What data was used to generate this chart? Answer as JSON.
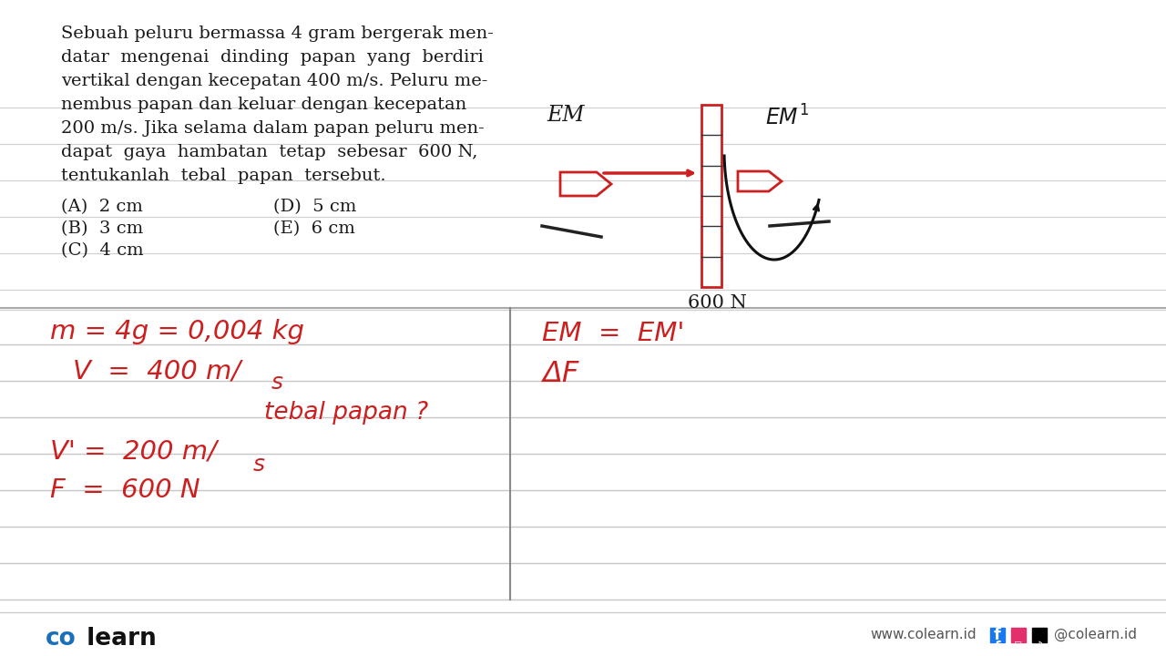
{
  "bg_color": "#ffffff",
  "line_color": "#cccccc",
  "red_color": "#cc2020",
  "black_color": "#1a1a1a",
  "problem_lines": [
    "Sebuah peluru bermassa 4 gram bergerak men-",
    "datar  mengenai  dinding  papan  yang  berdiri",
    "vertikal dengan kecepatan 400 m/s. Peluru me-",
    "nembus papan dan keluar dengan kecepatan",
    "200 m/s. Jika selama dalam papan peluru men-",
    "dapat  gaya  hambatan  tetap  sebesar  600 N,",
    "tentukanlah  tebal  papan  tersebut."
  ],
  "opt_A": "(A)  2 cm",
  "opt_B": "(B)  3 cm",
  "opt_C": "(C)  4 cm",
  "opt_D": "(D)  5 cm",
  "opt_E": "(E)  6 cm",
  "footer_co": "co",
  "footer_learn": " learn",
  "footer_web": "www.colearn.id",
  "footer_social": "@colearn.id"
}
